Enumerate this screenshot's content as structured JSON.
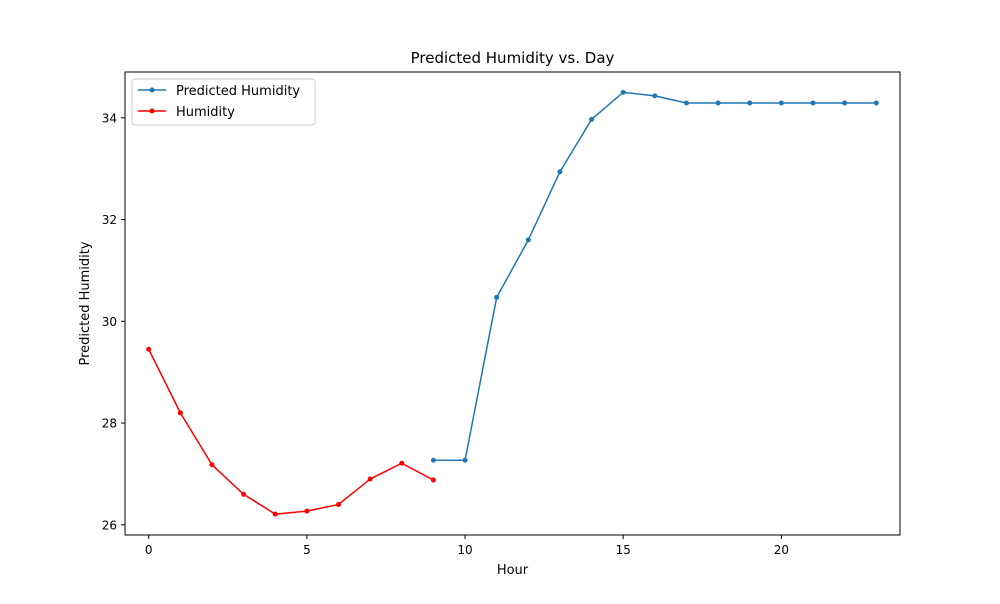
{
  "chart_data": {
    "type": "line",
    "title": "Predicted Humidity vs. Day",
    "xlabel": "Hour",
    "ylabel": "Predicted Humidity",
    "xlim": [
      -0.75,
      23.75
    ],
    "ylim": [
      25.8,
      34.9
    ],
    "xticks": [
      0,
      5,
      10,
      15,
      20
    ],
    "yticks": [
      26,
      28,
      30,
      32,
      34
    ],
    "grid": false,
    "legend_position": "top-left",
    "series": [
      {
        "name": "Predicted Humidity",
        "color": "#1f77b4",
        "marker": "circle",
        "x": [
          9,
          10,
          11,
          12,
          13,
          14,
          15,
          16,
          17,
          18,
          19,
          20,
          21,
          22,
          23
        ],
        "y": [
          27.27,
          27.27,
          30.47,
          31.6,
          32.94,
          33.97,
          34.5,
          34.43,
          34.29,
          34.29,
          34.29,
          34.29,
          34.29,
          34.29,
          34.29
        ]
      },
      {
        "name": "Humidity",
        "color": "#ff0000",
        "marker": "circle",
        "x": [
          0,
          1,
          2,
          3,
          4,
          5,
          6,
          7,
          8,
          9
        ],
        "y": [
          29.45,
          28.2,
          27.18,
          26.6,
          26.21,
          26.27,
          26.4,
          26.9,
          27.21,
          26.88
        ]
      }
    ]
  }
}
